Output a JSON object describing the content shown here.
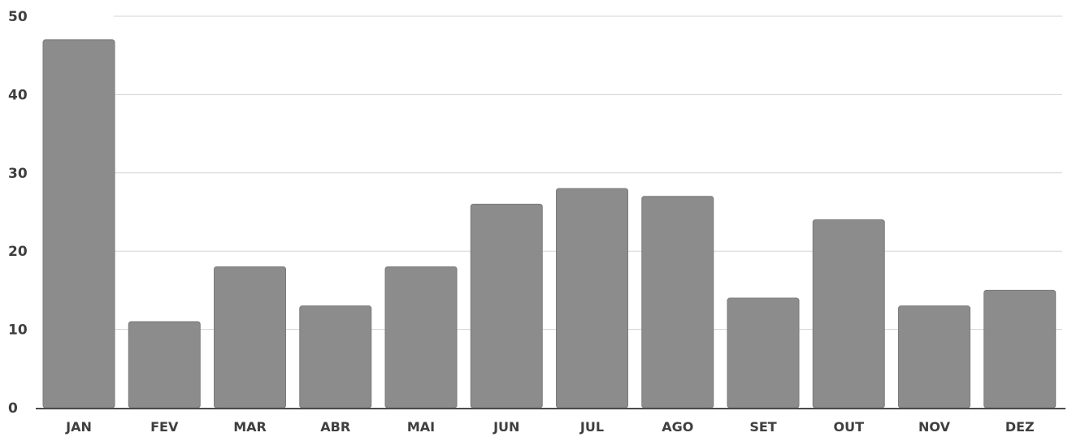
{
  "chart_data": {
    "type": "bar",
    "categories": [
      "JAN",
      "FEV",
      "MAR",
      "ABR",
      "MAI",
      "JUN",
      "JUL",
      "AGO",
      "SET",
      "OUT",
      "NOV",
      "DEZ"
    ],
    "values": [
      47,
      11,
      18,
      13,
      18,
      26,
      28,
      27,
      14,
      24,
      13,
      15
    ],
    "title": "",
    "xlabel": "",
    "ylabel": "",
    "ylim": [
      0,
      50
    ],
    "yticks": [
      0,
      10,
      20,
      30,
      40,
      50
    ],
    "grid": true,
    "bar_color": "#8c8c8c"
  }
}
